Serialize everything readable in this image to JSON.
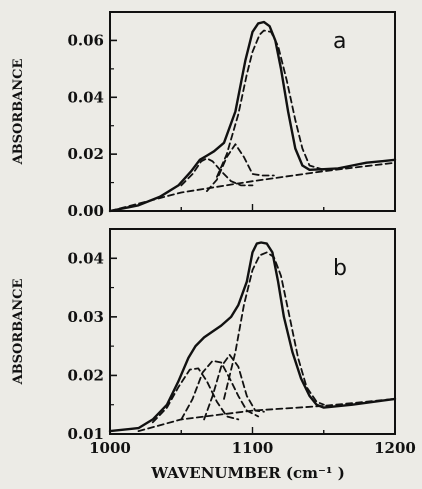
{
  "chart_data": [
    {
      "type": "line",
      "panel_label": "a",
      "ylabel": "ABSORBANCE",
      "ylim": [
        0.0,
        0.07
      ],
      "xlim": [
        1000,
        1200
      ],
      "yticks": [
        "0.00",
        "0.02",
        "0.04",
        "0.06"
      ],
      "ytick_values": [
        0.0,
        0.02,
        0.04,
        0.06
      ],
      "series": [
        {
          "style": "solid",
          "x": [
            1000,
            1020,
            1035,
            1048,
            1057,
            1063,
            1068,
            1073,
            1080,
            1088,
            1095,
            1100,
            1104,
            1108,
            1112,
            1116,
            1120,
            1125,
            1130,
            1135,
            1140,
            1150,
            1160,
            1170,
            1180,
            1190,
            1200
          ],
          "y": [
            0.0,
            0.002,
            0.005,
            0.009,
            0.014,
            0.018,
            0.0195,
            0.021,
            0.024,
            0.035,
            0.053,
            0.063,
            0.066,
            0.0665,
            0.065,
            0.06,
            0.05,
            0.035,
            0.022,
            0.016,
            0.0145,
            0.0147,
            0.015,
            0.016,
            0.017,
            0.0175,
            0.018
          ]
        },
        {
          "style": "dashed",
          "x": [
            1050,
            1058,
            1064,
            1068,
            1072,
            1078,
            1085,
            1092,
            1100
          ],
          "y": [
            0.009,
            0.013,
            0.0175,
            0.0185,
            0.0175,
            0.014,
            0.0105,
            0.009,
            0.009
          ]
        },
        {
          "style": "dashed",
          "x": [
            1068,
            1075,
            1082,
            1088,
            1094,
            1100,
            1107,
            1115
          ],
          "y": [
            0.007,
            0.011,
            0.019,
            0.0235,
            0.019,
            0.013,
            0.0125,
            0.0125
          ]
        },
        {
          "style": "dashed",
          "x": [
            1075,
            1082,
            1090,
            1096,
            1100,
            1105,
            1108,
            1113,
            1118,
            1124,
            1130,
            1135,
            1140,
            1150
          ],
          "y": [
            0.012,
            0.02,
            0.034,
            0.048,
            0.056,
            0.062,
            0.0635,
            0.063,
            0.058,
            0.046,
            0.032,
            0.022,
            0.016,
            0.0145
          ]
        },
        {
          "style": "dashed",
          "x": [
            1000,
            1050,
            1100,
            1150,
            1200
          ],
          "y": [
            0.0,
            0.0065,
            0.0105,
            0.014,
            0.017
          ]
        }
      ]
    },
    {
      "type": "line",
      "panel_label": "b",
      "ylabel": "ABSORBANCE",
      "ylim": [
        0.01,
        0.045
      ],
      "xlim": [
        1000,
        1200
      ],
      "yticks": [
        "0.01",
        "0.02",
        "0.03",
        "0.04"
      ],
      "ytick_values": [
        0.01,
        0.02,
        0.03,
        0.04
      ],
      "xticks": [
        "1000",
        "1100",
        "1200"
      ],
      "xtick_values": [
        1000,
        1100,
        1200
      ],
      "xlabel": "WAVENUMBER (cm⁻¹ )",
      "series": [
        {
          "style": "solid",
          "x": [
            1000,
            1020,
            1030,
            1040,
            1048,
            1055,
            1060,
            1066,
            1072,
            1078,
            1085,
            1090,
            1096,
            1100,
            1103,
            1106,
            1110,
            1114,
            1118,
            1122,
            1128,
            1134,
            1140,
            1145,
            1150,
            1170,
            1200
          ],
          "y": [
            0.0105,
            0.011,
            0.0125,
            0.015,
            0.019,
            0.023,
            0.025,
            0.0265,
            0.0275,
            0.0285,
            0.03,
            0.032,
            0.036,
            0.041,
            0.0425,
            0.0427,
            0.0425,
            0.041,
            0.036,
            0.03,
            0.024,
            0.0195,
            0.0165,
            0.015,
            0.0145,
            0.015,
            0.016
          ]
        },
        {
          "style": "dashed",
          "x": [
            1030,
            1040,
            1048,
            1056,
            1062,
            1068,
            1075,
            1082,
            1090
          ],
          "y": [
            0.012,
            0.0145,
            0.018,
            0.021,
            0.0212,
            0.019,
            0.0155,
            0.013,
            0.0125
          ]
        },
        {
          "style": "dashed",
          "x": [
            1050,
            1058,
            1065,
            1072,
            1078,
            1084,
            1090,
            1096,
            1104
          ],
          "y": [
            0.0125,
            0.016,
            0.0205,
            0.0225,
            0.0222,
            0.0195,
            0.0165,
            0.014,
            0.013
          ]
        },
        {
          "style": "dashed",
          "x": [
            1066,
            1072,
            1078,
            1084,
            1090,
            1096,
            1102,
            1108
          ],
          "y": [
            0.0125,
            0.0165,
            0.0215,
            0.0235,
            0.0215,
            0.0165,
            0.014,
            0.0138
          ]
        },
        {
          "style": "dashed",
          "x": [
            1080,
            1088,
            1094,
            1100,
            1105,
            1110,
            1115,
            1120,
            1126,
            1132,
            1138,
            1145,
            1150
          ],
          "y": [
            0.016,
            0.024,
            0.032,
            0.038,
            0.0405,
            0.041,
            0.0402,
            0.037,
            0.03,
            0.023,
            0.018,
            0.0155,
            0.015
          ]
        },
        {
          "style": "dashed",
          "x": [
            1020,
            1050,
            1100,
            1150,
            1200
          ],
          "y": [
            0.0105,
            0.0125,
            0.014,
            0.0148,
            0.016
          ]
        }
      ]
    }
  ]
}
